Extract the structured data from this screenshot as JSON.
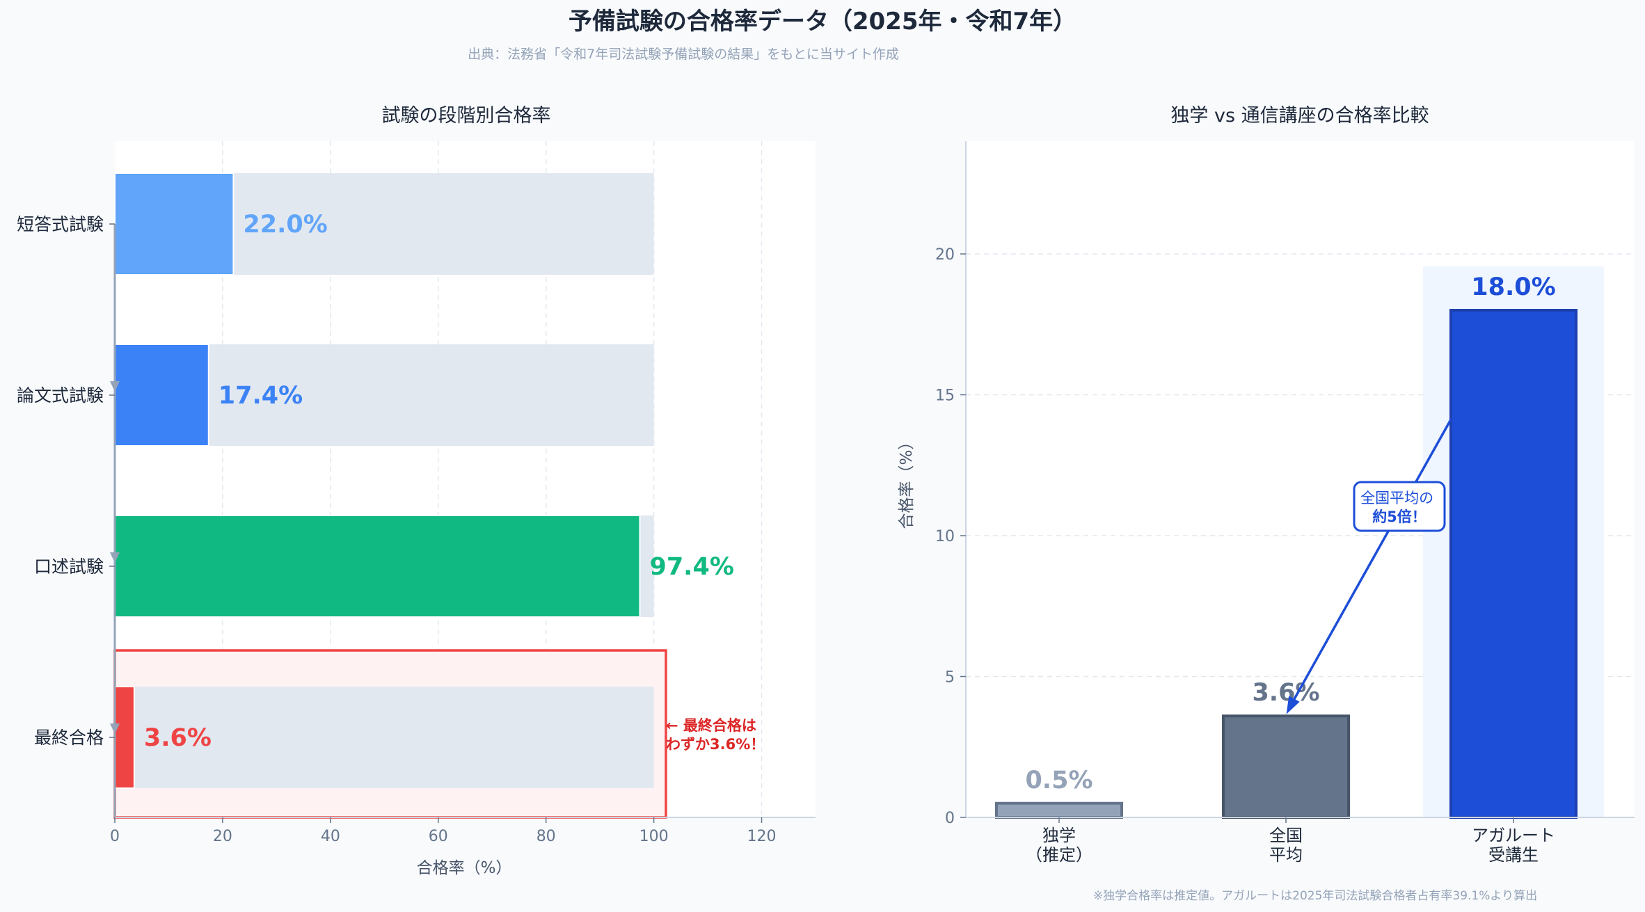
{
  "title": "予備試験の合格率データ（2025年・令和7年）",
  "subtitle": "出典：法務省「令和7年司法試験予備試験の結果」をもとに当サイト作成",
  "footnote": "※独学合格率は推定値。アガルートは2025年司法試験合格者占有率39.1%より算出",
  "chart_data": [
    {
      "type": "bar",
      "orientation": "horizontal",
      "title": "試験の段階別合格率",
      "xlabel": "合格率（%）",
      "ylabel": "",
      "xlim": [
        0,
        130
      ],
      "xticks": [
        "0",
        "20",
        "40",
        "60",
        "80",
        "100",
        "120"
      ],
      "categories": [
        "短答式試験",
        "論文式試験",
        "口述試験",
        "最終合格"
      ],
      "values": [
        22.0,
        17.4,
        97.4,
        3.6
      ],
      "value_labels": [
        "22.0%",
        "17.4%",
        "97.4%",
        "3.6%"
      ],
      "background_value": 100,
      "colors": [
        "#60a5fa",
        "#3b82f6",
        "#10b981",
        "#ef4444"
      ],
      "background_color": "#e2e8f0",
      "grid": "vertical dashed",
      "highlight_category": "最終合格",
      "annotation": [
        "← 最終合格は",
        "わずか3.6%！"
      ],
      "annotation_color": "#dc2626"
    },
    {
      "type": "bar",
      "title": "独学 vs 通信講座の合格率比較",
      "xlabel": "",
      "ylabel": "合格率（%）",
      "ylim": [
        0,
        24
      ],
      "yticks": [
        "0",
        "5",
        "10",
        "15",
        "20"
      ],
      "categories": [
        [
          "独学",
          "（推定）"
        ],
        [
          "全国",
          "平均"
        ],
        [
          "アガルート",
          "受講生"
        ]
      ],
      "values": [
        0.5,
        3.6,
        18.0
      ],
      "value_labels": [
        "0.5%",
        "3.6%",
        "18.0%"
      ],
      "colors": [
        "#94a3b8",
        "#64748b",
        "#1d4ed8"
      ],
      "edge_colors": [
        "#64748b",
        "#475569",
        "#1e40af"
      ],
      "label_colors": [
        "#94a3b8",
        "#64748b",
        "#1d4ed8"
      ],
      "grid": "horizontal dashed",
      "highlight_category": "アガルート受講生",
      "highlight_color": "#eff6ff",
      "annotation": [
        "全国平均の",
        "約5倍！"
      ],
      "annotation_color": "#1d4ed8"
    }
  ]
}
